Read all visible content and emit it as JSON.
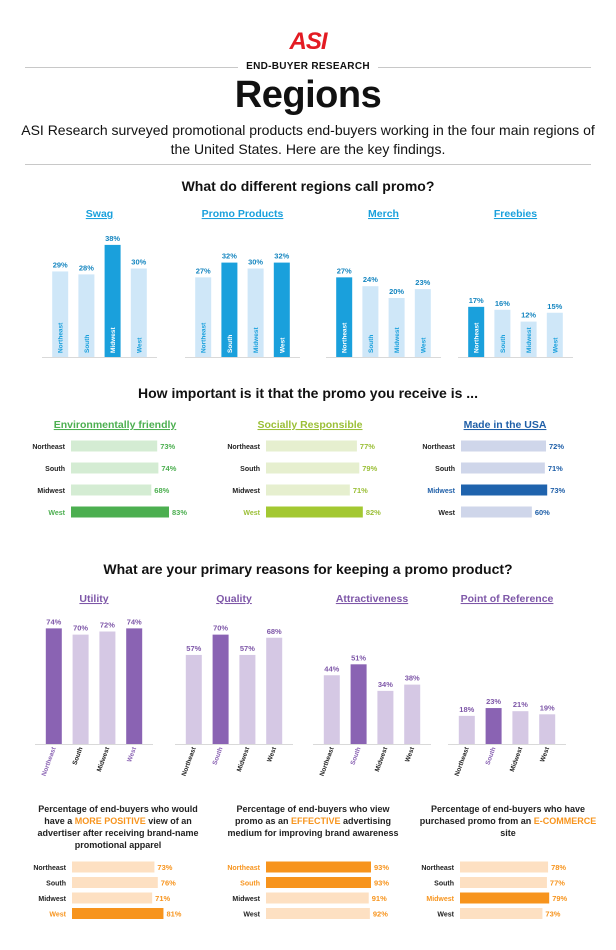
{
  "header": {
    "logo": "ASI",
    "eyebrow": "END-BUYER RESEARCH",
    "title": "Regions",
    "intro": "ASI Research surveyed promotional products end-buyers working in the four main regions of the United States. Here are the key findings."
  },
  "section1": {
    "question": "What do different regions call promo?",
    "colors": {
      "title": "#1aa0dc",
      "light": "#cfe7f8",
      "dark": "#1aa0dc",
      "label": "#1aa0dc",
      "labelDark": "#1686c0"
    }
  },
  "section2": {
    "question": "How important is it that the promo you receive is ...",
    "palettes": [
      {
        "title": "#4caf50",
        "light": "#d4ecd3",
        "dark": "#4caf50",
        "hl": "#4caf50"
      },
      {
        "title": "#9bbf37",
        "light": "#e6efcf",
        "dark": "#a3c832",
        "hl": "#9bbf37"
      },
      {
        "title": "#1f5fa8",
        "light": "#cfd6ea",
        "dark": "#1f63ad",
        "hl": "#1f5fa8"
      }
    ]
  },
  "section3": {
    "question": "What are your primary reasons for keeping a promo product?",
    "colors": {
      "title": "#7e57a8",
      "light": "#d5c8e4",
      "dark": "#8a63b3"
    }
  },
  "section4": {
    "texts": [
      {
        "pre": "Percentage of end-buyers who would have a ",
        "hl": "MORE POSITIVE",
        "post": " view of an advertiser after receiving brand-name promotional apparel"
      },
      {
        "pre": "Percentage of end-buyers who view promo as an ",
        "hl": "EFFECTIVE",
        "post": " advertising medium for improving brand awareness"
      },
      {
        "pre": "Percentage of end-buyers who have purchased promo from an ",
        "hl": "E-COMMERCE",
        "post": " site"
      }
    ],
    "colors": {
      "light": "#fde0c2",
      "dark": "#f7941d",
      "hl": "#f7941d"
    }
  },
  "chart_data": [
    {
      "type": "bar",
      "title": "Swag",
      "categories": [
        "Northeast",
        "South",
        "Midwest",
        "West"
      ],
      "values": [
        29,
        28,
        38,
        30
      ],
      "highlight": [
        2
      ],
      "ylim": [
        0,
        40
      ]
    },
    {
      "type": "bar",
      "title": "Promo Products",
      "categories": [
        "Northeast",
        "South",
        "Midwest",
        "West"
      ],
      "values": [
        27,
        32,
        30,
        32
      ],
      "highlight": [
        1,
        3
      ],
      "ylim": [
        0,
        40
      ]
    },
    {
      "type": "bar",
      "title": "Merch",
      "categories": [
        "Northeast",
        "South",
        "Midwest",
        "West"
      ],
      "values": [
        27,
        24,
        20,
        23
      ],
      "highlight": [
        0
      ],
      "ylim": [
        0,
        40
      ]
    },
    {
      "type": "bar",
      "title": "Freebies",
      "categories": [
        "Northeast",
        "South",
        "Midwest",
        "West"
      ],
      "values": [
        17,
        16,
        12,
        15
      ],
      "highlight": [
        0
      ],
      "ylim": [
        0,
        40
      ]
    },
    {
      "type": "bar",
      "orientation": "horizontal",
      "title": "Environmentally friendly",
      "categories": [
        "Northeast",
        "South",
        "Midwest",
        "West"
      ],
      "values": [
        73,
        74,
        68,
        83
      ],
      "highlight": [
        3
      ],
      "xlim": [
        0,
        83
      ]
    },
    {
      "type": "bar",
      "orientation": "horizontal",
      "title": "Socially Responsible",
      "categories": [
        "Northeast",
        "South",
        "Midwest",
        "West"
      ],
      "values": [
        77,
        79,
        71,
        82
      ],
      "highlight": [
        3
      ],
      "xlim": [
        0,
        83
      ]
    },
    {
      "type": "bar",
      "orientation": "horizontal",
      "title": "Made in the USA",
      "categories": [
        "Northeast",
        "South",
        "Midwest",
        "West"
      ],
      "values": [
        72,
        71,
        73,
        60
      ],
      "highlight": [
        2
      ],
      "xlim": [
        0,
        83
      ]
    },
    {
      "type": "bar",
      "title": "Utility",
      "categories": [
        "Northeast",
        "South",
        "Midwest",
        "West"
      ],
      "values": [
        74,
        70,
        72,
        74
      ],
      "highlight": [
        0,
        3
      ],
      "ylim": [
        0,
        80
      ]
    },
    {
      "type": "bar",
      "title": "Quality",
      "categories": [
        "Northeast",
        "South",
        "Midwest",
        "West"
      ],
      "values": [
        57,
        70,
        57,
        68
      ],
      "highlight": [
        1
      ],
      "ylim": [
        0,
        80
      ]
    },
    {
      "type": "bar",
      "title": "Attractiveness",
      "categories": [
        "Northeast",
        "South",
        "Midwest",
        "West"
      ],
      "values": [
        44,
        51,
        34,
        38
      ],
      "highlight": [
        1
      ],
      "ylim": [
        0,
        80
      ]
    },
    {
      "type": "bar",
      "title": "Point of Reference",
      "categories": [
        "Northeast",
        "South",
        "Midwest",
        "West"
      ],
      "values": [
        18,
        23,
        21,
        19
      ],
      "highlight": [
        1
      ],
      "ylim": [
        0,
        80
      ]
    },
    {
      "type": "bar",
      "orientation": "horizontal",
      "title": "",
      "categories": [
        "Northeast",
        "South",
        "Midwest",
        "West"
      ],
      "values": [
        73,
        76,
        71,
        81
      ],
      "highlight": [
        3
      ],
      "xlim": [
        0,
        93
      ]
    },
    {
      "type": "bar",
      "orientation": "horizontal",
      "title": "",
      "categories": [
        "Northeast",
        "South",
        "Midwest",
        "West"
      ],
      "values": [
        93,
        93,
        91,
        92
      ],
      "highlight": [
        0,
        1
      ],
      "xlim": [
        0,
        93
      ]
    },
    {
      "type": "bar",
      "orientation": "horizontal",
      "title": "",
      "categories": [
        "Northeast",
        "South",
        "Midwest",
        "West"
      ],
      "values": [
        78,
        77,
        79,
        73
      ],
      "highlight": [
        2
      ],
      "xlim": [
        0,
        93
      ]
    }
  ]
}
